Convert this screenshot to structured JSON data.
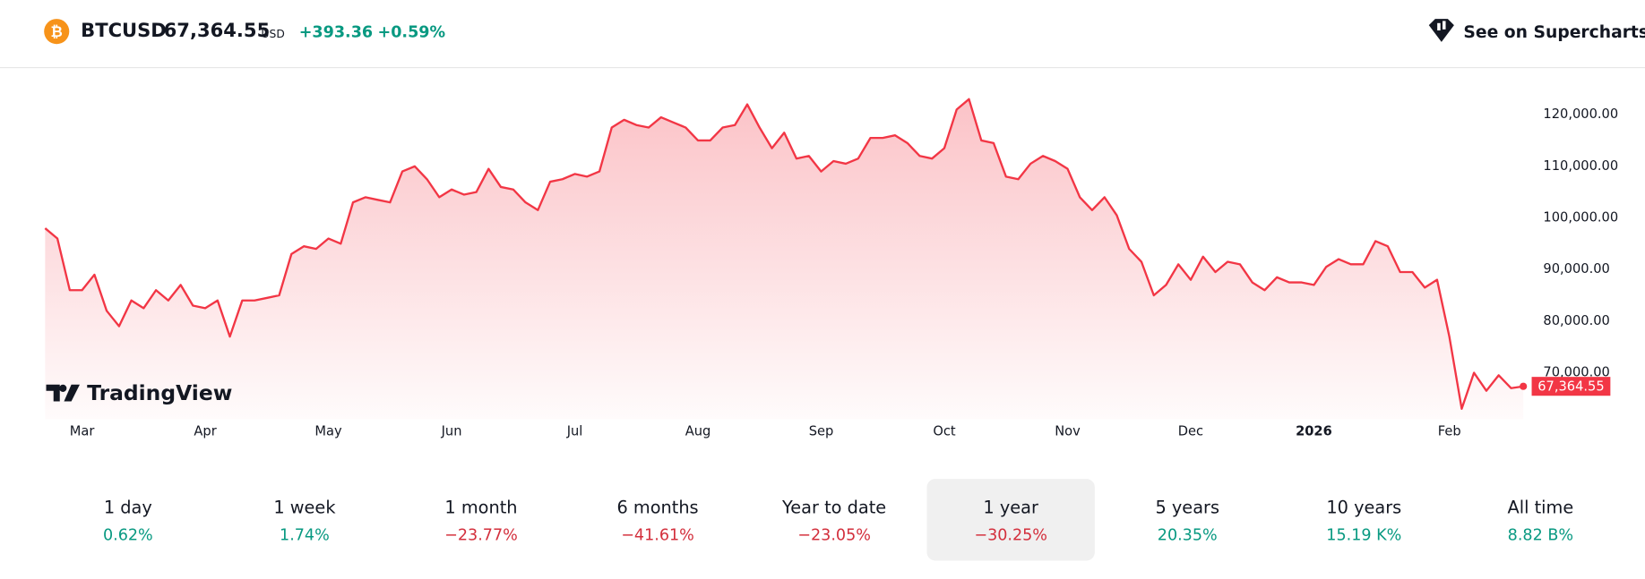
{
  "header": {
    "symbol": "BTCUSD",
    "price": "67,364.55",
    "currency": "USD",
    "change": "+393.36",
    "change_pct": "+0.59%",
    "link": "See on Supercharts"
  },
  "logo": "TradingView",
  "chart_data": {
    "type": "line",
    "categories": [
      null,
      null,
      null,
      "Mar",
      null,
      null,
      null,
      null,
      null,
      null,
      null,
      null,
      null,
      "Apr",
      null,
      null,
      null,
      null,
      null,
      null,
      null,
      null,
      null,
      "May",
      null,
      null,
      null,
      null,
      null,
      null,
      null,
      null,
      null,
      "Jun",
      null,
      null,
      null,
      null,
      null,
      null,
      null,
      null,
      null,
      "Jul",
      null,
      null,
      null,
      null,
      null,
      null,
      null,
      null,
      null,
      "Aug",
      null,
      null,
      null,
      null,
      null,
      null,
      null,
      null,
      null,
      "Sep",
      null,
      null,
      null,
      null,
      null,
      null,
      null,
      null,
      null,
      "Oct",
      null,
      null,
      null,
      null,
      null,
      null,
      null,
      null,
      null,
      "Nov",
      null,
      null,
      null,
      null,
      null,
      null,
      null,
      null,
      null,
      "Dec",
      null,
      null,
      null,
      null,
      null,
      null,
      null,
      null,
      null,
      "2026",
      null,
      null,
      null,
      null,
      null,
      null,
      null,
      null,
      null,
      null,
      "Feb",
      null,
      null,
      null,
      null,
      null,
      null
    ],
    "series": [
      {
        "name": "BTCUSD",
        "color": "#f23645",
        "values": [
          98000,
          96000,
          86000,
          86000,
          89000,
          82000,
          79000,
          84000,
          82500,
          86000,
          84000,
          87000,
          83000,
          82500,
          84000,
          77000,
          84000,
          84000,
          84500,
          85000,
          93000,
          94500,
          94000,
          96000,
          95000,
          103000,
          104000,
          103500,
          103000,
          109000,
          110000,
          107500,
          104000,
          105500,
          104500,
          105000,
          109500,
          106000,
          105500,
          103000,
          101500,
          107000,
          107500,
          108500,
          108000,
          109000,
          117500,
          119000,
          118000,
          117500,
          119500,
          118500,
          117500,
          115000,
          115000,
          117500,
          118000,
          122000,
          117500,
          113500,
          116500,
          111500,
          112000,
          109000,
          111000,
          110500,
          111500,
          115500,
          115500,
          116000,
          114500,
          112000,
          111500,
          113500,
          121000,
          123000,
          115000,
          114500,
          108000,
          107500,
          110500,
          112000,
          111000,
          109500,
          104000,
          101500,
          104000,
          100500,
          94000,
          91500,
          85000,
          87000,
          91000,
          88000,
          92500,
          89500,
          91500,
          91000,
          87500,
          86000,
          88500,
          87500,
          87500,
          87000,
          90500,
          92000,
          91000,
          91000,
          95500,
          94500,
          89500,
          89500,
          86500,
          88000,
          77000,
          63000,
          70000,
          66500,
          69500,
          67000,
          67364.55
        ]
      }
    ],
    "ylim": [
      61000,
      128000
    ],
    "yticks": [
      {
        "value": 70000,
        "label": "70,000.00"
      },
      {
        "value": 80000,
        "label": "80,000.00"
      },
      {
        "value": 90000,
        "label": "90,000.00"
      },
      {
        "value": 100000,
        "label": "100,000.00"
      },
      {
        "value": 110000,
        "label": "110,000.00"
      },
      {
        "value": 120000,
        "label": "120,000.00"
      }
    ],
    "grid": false
  },
  "periods": [
    {
      "label": "1 day",
      "change": "0.62%"
    },
    {
      "label": "1 week",
      "change": "1.74%"
    },
    {
      "label": "1 month",
      "change": "−23.77%"
    },
    {
      "label": "6 months",
      "change": "−41.61%"
    },
    {
      "label": "Year to date",
      "change": "−23.05%"
    },
    {
      "label": "1 year",
      "change": "−30.25%"
    },
    {
      "label": "5 years",
      "change": "20.35%"
    },
    {
      "label": "10 years",
      "change": "15.19 K%"
    },
    {
      "label": "All time",
      "change": "8.82 B%"
    }
  ],
  "selected_period": "1 year"
}
